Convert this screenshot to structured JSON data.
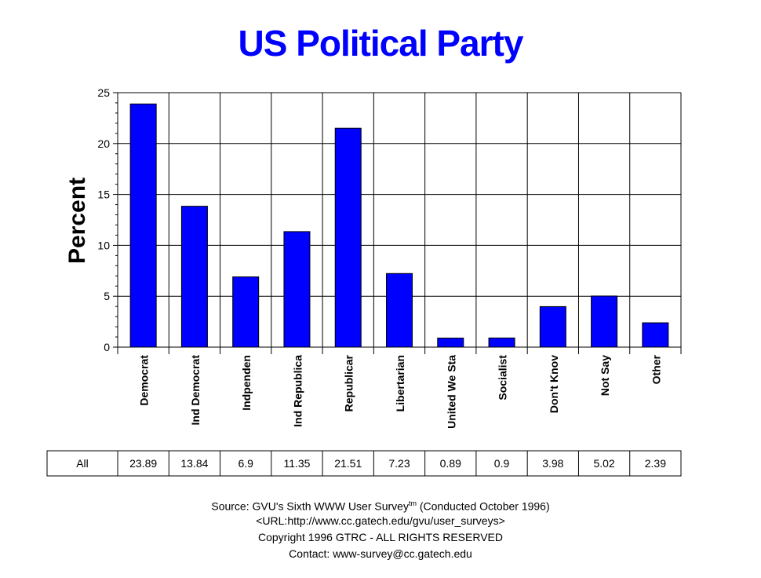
{
  "chart_data": {
    "type": "bar",
    "title": "US Political Party",
    "ylabel": "Percent",
    "xlabel": "",
    "ylim": [
      0,
      25
    ],
    "yticks": [
      0,
      5,
      10,
      15,
      20,
      25
    ],
    "grid": true,
    "bar_color": "#0000ff",
    "categories": [
      "Democrat",
      "Ind Democrat",
      "Indpendent",
      "Ind Republican",
      "Republican",
      "Libertarian",
      "United We Stand",
      "Socialist",
      "Don't Know",
      "Not Say",
      "Other"
    ],
    "category_labels_shown": [
      "Democrat",
      "Ind Democrat",
      "Indpenden",
      "Ind Republica",
      "Republicar",
      "Libertarian",
      "United We Sta",
      "Socialist",
      "Don't Knov",
      "Not Say",
      "Other"
    ],
    "series": [
      {
        "name": "All",
        "values": [
          23.89,
          13.84,
          6.9,
          11.35,
          21.51,
          7.23,
          0.89,
          0.9,
          3.98,
          5.02,
          2.39
        ]
      }
    ],
    "table_values": [
      "23.89",
      "13.84",
      "6.9",
      "11.35",
      "21.51",
      "7.23",
      "0.89",
      "0.9",
      "3.98",
      "5.02",
      "2.39"
    ]
  },
  "footer": {
    "source": "Source: GVU's Sixth WWW User Survey",
    "tm": "tm",
    "conducted": " (Conducted October 1996)",
    "url": "<URL:http://www.cc.gatech.edu/gvu/user_surveys>",
    "copyright": "Copyright 1996 GTRC -  ALL RIGHTS RESERVED",
    "contact": "Contact: www-survey@cc.gatech.edu"
  }
}
